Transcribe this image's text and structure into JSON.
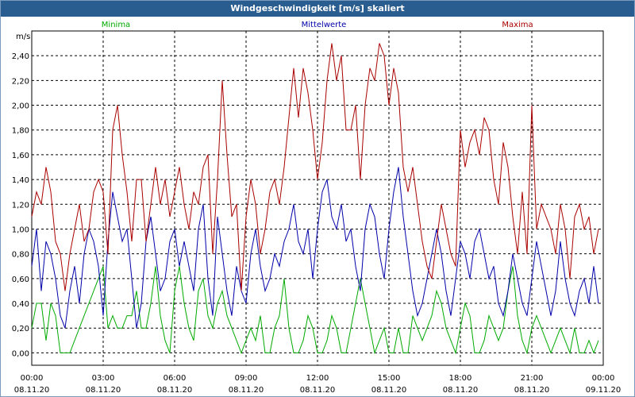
{
  "window": {
    "title": "Windgeschwindigkeit [m/s] skaliert"
  },
  "colors": {
    "min": "#00aa00",
    "mean": "#0000aa",
    "max": "#aa0000",
    "grid": "#000000"
  },
  "chart_data": {
    "type": "line",
    "title": "Windgeschwindigkeit [m/s] skaliert",
    "ylabel": "m/s",
    "ylim": [
      -0.1,
      2.6
    ],
    "yticks": [
      "0,00",
      "0,20",
      "0,40",
      "0,60",
      "0,80",
      "1,00",
      "1,20",
      "1,40",
      "1,60",
      "1,80",
      "2,00",
      "2,20",
      "2,40"
    ],
    "xlim": [
      0,
      24
    ],
    "xticks": [
      {
        "time": "00:00",
        "date": "08.11.20"
      },
      {
        "time": "03:00",
        "date": "08.11.20"
      },
      {
        "time": "06:00",
        "date": "08.11.20"
      },
      {
        "time": "09:00",
        "date": "08.11.20"
      },
      {
        "time": "12:00",
        "date": "08.11.20"
      },
      {
        "time": "15:00",
        "date": "08.11.20"
      },
      {
        "time": "18:00",
        "date": "08.11.20"
      },
      {
        "time": "21:00",
        "date": "08.11.20"
      },
      {
        "time": "00:00",
        "date": "09.11.20"
      }
    ],
    "series": [
      {
        "name": "Minima",
        "color": "#00aa00",
        "x": [
          0,
          0.2,
          0.4,
          0.6,
          0.8,
          1,
          1.2,
          1.4,
          1.6,
          1.8,
          2,
          2.2,
          2.4,
          2.6,
          2.8,
          3,
          3.2,
          3.4,
          3.6,
          3.8,
          4,
          4.2,
          4.4,
          4.6,
          4.8,
          5,
          5.2,
          5.4,
          5.6,
          5.8,
          6,
          6.2,
          6.4,
          6.6,
          6.8,
          7,
          7.2,
          7.4,
          7.6,
          7.8,
          8,
          8.2,
          8.4,
          8.6,
          8.8,
          9,
          9.2,
          9.4,
          9.6,
          9.8,
          10,
          10.2,
          10.4,
          10.6,
          10.8,
          11,
          11.2,
          11.4,
          11.6,
          11.8,
          12,
          12.2,
          12.4,
          12.6,
          12.8,
          13,
          13.2,
          13.4,
          13.6,
          13.8,
          14,
          14.2,
          14.4,
          14.6,
          14.8,
          15,
          15.2,
          15.4,
          15.6,
          15.8,
          16,
          16.2,
          16.4,
          16.6,
          16.8,
          17,
          17.2,
          17.4,
          17.6,
          17.8,
          18,
          18.2,
          18.4,
          18.6,
          18.8,
          19,
          19.2,
          19.4,
          19.6,
          19.8,
          20,
          20.2,
          20.4,
          20.6,
          20.8,
          21,
          21.2,
          21.4,
          21.6,
          21.8,
          22,
          22.2,
          22.4,
          22.6,
          22.8,
          23,
          23.2,
          23.4,
          23.6,
          23.8
        ],
        "values": [
          0.2,
          0.4,
          0.4,
          0.1,
          0.4,
          0.3,
          0,
          0,
          0,
          0.1,
          0.2,
          0.3,
          0.4,
          0.5,
          0.6,
          0.7,
          0.2,
          0.3,
          0.2,
          0.2,
          0.3,
          0.3,
          0.5,
          0.2,
          0.2,
          0.4,
          0.7,
          0.3,
          0.1,
          0,
          0.5,
          0.7,
          0.4,
          0.2,
          0.1,
          0.5,
          0.6,
          0.3,
          0.2,
          0.4,
          0.5,
          0.3,
          0.2,
          0.1,
          0,
          0.1,
          0.2,
          0.1,
          0.3,
          0,
          0,
          0.2,
          0.3,
          0.6,
          0.2,
          0,
          0,
          0.1,
          0.3,
          0.2,
          0,
          0,
          0.1,
          0.3,
          0.2,
          0,
          0,
          0.2,
          0.4,
          0.6,
          0.4,
          0.2,
          0,
          0.1,
          0.2,
          0,
          0,
          0.2,
          0,
          0,
          0.3,
          0.2,
          0.1,
          0.2,
          0.3,
          0.5,
          0.4,
          0.2,
          0.1,
          0,
          0.2,
          0.4,
          0.3,
          0,
          0,
          0.1,
          0.3,
          0.2,
          0.1,
          0.2,
          0.5,
          0.7,
          0.3,
          0.1,
          0,
          0.2,
          0.3,
          0.2,
          0.1,
          0,
          0.1,
          0.2,
          0.1,
          0,
          0.2,
          0,
          0,
          0.1,
          0,
          0.1
        ]
      },
      {
        "name": "Mittelwerte",
        "color": "#0000aa",
        "x": [
          0,
          0.2,
          0.4,
          0.6,
          0.8,
          1,
          1.2,
          1.4,
          1.6,
          1.8,
          2,
          2.2,
          2.4,
          2.6,
          2.8,
          3,
          3.2,
          3.4,
          3.6,
          3.8,
          4,
          4.2,
          4.4,
          4.6,
          4.8,
          5,
          5.2,
          5.4,
          5.6,
          5.8,
          6,
          6.2,
          6.4,
          6.6,
          6.8,
          7,
          7.2,
          7.4,
          7.6,
          7.8,
          8,
          8.2,
          8.4,
          8.6,
          8.8,
          9,
          9.2,
          9.4,
          9.6,
          9.8,
          10,
          10.2,
          10.4,
          10.6,
          10.8,
          11,
          11.2,
          11.4,
          11.6,
          11.8,
          12,
          12.2,
          12.4,
          12.6,
          12.8,
          13,
          13.2,
          13.4,
          13.6,
          13.8,
          14,
          14.2,
          14.4,
          14.6,
          14.8,
          15,
          15.2,
          15.4,
          15.6,
          15.8,
          16,
          16.2,
          16.4,
          16.6,
          16.8,
          17,
          17.2,
          17.4,
          17.6,
          17.8,
          18,
          18.2,
          18.4,
          18.6,
          18.8,
          19,
          19.2,
          19.4,
          19.6,
          19.8,
          20,
          20.2,
          20.4,
          20.6,
          20.8,
          21,
          21.2,
          21.4,
          21.6,
          21.8,
          22,
          22.2,
          22.4,
          22.6,
          22.8,
          23,
          23.2,
          23.4,
          23.6,
          23.8
        ],
        "values": [
          0.7,
          1,
          0.5,
          0.9,
          0.8,
          0.6,
          0.3,
          0.2,
          0.5,
          0.7,
          0.4,
          0.8,
          1,
          0.9,
          0.7,
          0.3,
          0.9,
          1.3,
          1.1,
          0.9,
          1,
          0.6,
          0.2,
          0.4,
          0.9,
          1.1,
          0.8,
          0.5,
          0.6,
          0.9,
          1,
          0.7,
          0.9,
          0.7,
          0.5,
          1,
          1.2,
          0.6,
          0.3,
          1.1,
          0.8,
          0.5,
          0.3,
          0.7,
          0.5,
          0.4,
          0.8,
          1,
          0.7,
          0.5,
          0.6,
          0.8,
          0.7,
          0.9,
          1,
          1.2,
          0.9,
          0.8,
          1,
          0.6,
          1,
          1.3,
          1.4,
          1.1,
          1,
          1.2,
          0.9,
          1,
          0.7,
          0.5,
          1,
          1.2,
          1.1,
          0.8,
          0.6,
          1,
          1.3,
          1.5,
          1.1,
          0.8,
          0.5,
          0.3,
          0.4,
          0.6,
          0.8,
          1,
          0.8,
          0.5,
          0.3,
          0.6,
          0.9,
          0.8,
          0.6,
          0.9,
          1,
          0.8,
          0.6,
          0.7,
          0.4,
          0.3,
          0.5,
          0.8,
          0.6,
          0.4,
          0.3,
          0.6,
          0.9,
          0.7,
          0.5,
          0.3,
          0.5,
          0.9,
          0.6,
          0.4,
          0.3,
          0.5,
          0.6,
          0.4,
          0.7,
          0.4
        ]
      },
      {
        "name": "Maxima",
        "color": "#aa0000",
        "x": [
          0,
          0.2,
          0.4,
          0.6,
          0.8,
          1,
          1.2,
          1.4,
          1.6,
          1.8,
          2,
          2.2,
          2.4,
          2.6,
          2.8,
          3,
          3.2,
          3.4,
          3.6,
          3.8,
          4,
          4.2,
          4.4,
          4.6,
          4.8,
          5,
          5.2,
          5.4,
          5.6,
          5.8,
          6,
          6.2,
          6.4,
          6.6,
          6.8,
          7,
          7.2,
          7.4,
          7.6,
          7.8,
          8,
          8.2,
          8.4,
          8.6,
          8.8,
          9,
          9.2,
          9.4,
          9.6,
          9.8,
          10,
          10.2,
          10.4,
          10.6,
          10.8,
          11,
          11.2,
          11.4,
          11.6,
          11.8,
          12,
          12.2,
          12.4,
          12.6,
          12.8,
          13,
          13.2,
          13.4,
          13.6,
          13.8,
          14,
          14.2,
          14.4,
          14.6,
          14.8,
          15,
          15.2,
          15.4,
          15.6,
          15.8,
          16,
          16.2,
          16.4,
          16.6,
          16.8,
          17,
          17.2,
          17.4,
          17.6,
          17.8,
          18,
          18.2,
          18.4,
          18.6,
          18.8,
          19,
          19.2,
          19.4,
          19.6,
          19.8,
          20,
          20.2,
          20.4,
          20.6,
          20.8,
          21,
          21.2,
          21.4,
          21.6,
          21.8,
          22,
          22.2,
          22.4,
          22.6,
          22.8,
          23,
          23.2,
          23.4,
          23.6,
          23.8
        ],
        "values": [
          1.1,
          1.3,
          1.2,
          1.5,
          1.3,
          0.9,
          0.8,
          0.5,
          0.8,
          1,
          1.2,
          0.9,
          1,
          1.3,
          1.4,
          1.3,
          0.8,
          1.8,
          2,
          1.6,
          1.3,
          0.9,
          1.4,
          1.4,
          0.9,
          1.2,
          1.5,
          1.2,
          1.4,
          1.1,
          1.3,
          1.5,
          1.2,
          1,
          1.3,
          1.2,
          1.5,
          1.6,
          0.8,
          1.4,
          2.2,
          1.6,
          1.1,
          1.2,
          0.5,
          1.1,
          1.4,
          1.2,
          0.8,
          1,
          1.3,
          1.4,
          1.2,
          1.5,
          1.9,
          2.3,
          1.9,
          2.3,
          2.1,
          1.8,
          1.4,
          1.7,
          2.2,
          2.5,
          2.2,
          2.4,
          1.8,
          1.8,
          2,
          1.4,
          2,
          2.3,
          2.2,
          2.5,
          2.4,
          2,
          2.3,
          2.1,
          1.5,
          1.3,
          1.5,
          1.2,
          0.9,
          0.7,
          0.6,
          0.9,
          1.2,
          1,
          0.8,
          0.7,
          1.8,
          1.5,
          1.7,
          1.8,
          1.6,
          1.9,
          1.8,
          1.4,
          1.2,
          1.7,
          1.5,
          1.1,
          0.8,
          1.3,
          0.8,
          2,
          1,
          1.2,
          1.1,
          1,
          0.8,
          1.2,
          1,
          0.6,
          1.1,
          1.2,
          1,
          1.1,
          0.8,
          1
        ]
      }
    ]
  }
}
